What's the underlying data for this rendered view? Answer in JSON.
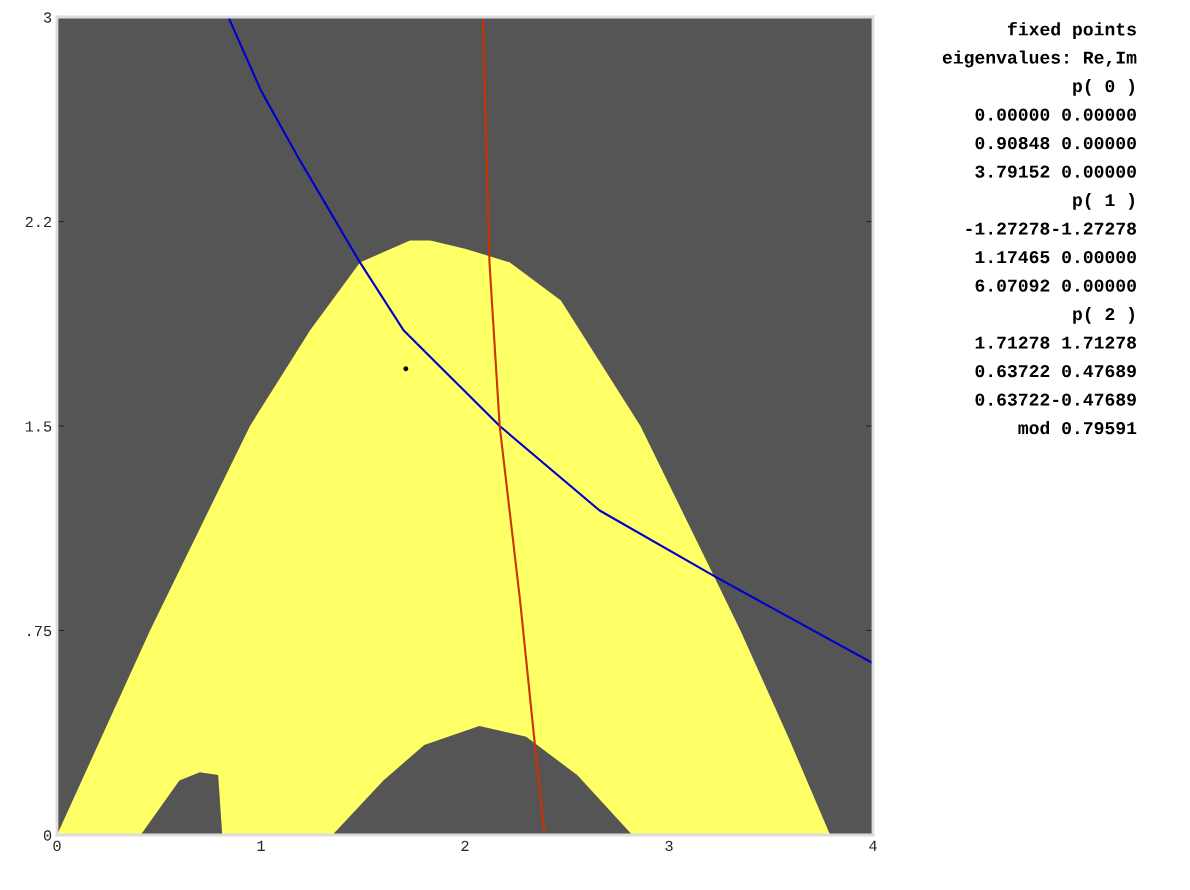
{
  "chart_data": {
    "type": "area",
    "xlim": [
      0,
      4
    ],
    "ylim": [
      0,
      3
    ],
    "xticks": [
      0,
      1,
      2,
      3,
      4
    ],
    "yticks": [
      0,
      {
        "value": 0.75,
        "label": ".75"
      },
      1.5,
      {
        "value": 2.25,
        "label": "2.2"
      },
      3
    ],
    "grid": false,
    "legend": false,
    "series": [
      {
        "color": "#ffff66",
        "x": [
          0,
          0.456,
          0.946,
          1.24,
          1.485,
          1.73,
          1.83,
          2.0,
          2.22,
          2.47,
          2.86,
          3.22,
          3.35,
          3.59,
          3.79
        ],
        "values": [
          0,
          0.75,
          1.5,
          1.85,
          2.1,
          2.18,
          2.18,
          2.15,
          2.1,
          1.96,
          1.5,
          0.95,
          0.75,
          0.35,
          0
        ]
      },
      {
        "color": "#555555",
        "x": [
          1.35,
          1.6,
          1.8,
          2.07,
          2.3,
          2.55,
          2.82
        ],
        "values": [
          0,
          0.2,
          0.33,
          0.4,
          0.36,
          0.22,
          0
        ]
      },
      {
        "color": "#555555",
        "x": [
          0.41,
          0.6,
          0.7,
          0.79,
          0.81
        ],
        "values": [
          0,
          0.2,
          0.23,
          0.22,
          0
        ]
      },
      {
        "type": "line",
        "color": "#0000cc",
        "x": [
          0.84,
          1.0,
          1.19,
          1.485,
          1.7,
          2.17,
          2.66,
          3.22,
          4.0
        ],
        "values": [
          3.0,
          2.73,
          2.475,
          2.1,
          1.85,
          1.5,
          1.19,
          0.95,
          0.63
        ]
      },
      {
        "type": "line",
        "color": "#cc3300",
        "x": [
          2.088,
          2.12,
          2.17,
          2.27,
          2.34,
          2.39
        ],
        "values": [
          3.0,
          2.1,
          1.5,
          0.86,
          0.35,
          0
        ]
      },
      {
        "type": "scatter",
        "color": "#000000",
        "x": [
          1.71
        ],
        "values": [
          1.71
        ]
      }
    ],
    "annotations": [
      "fixed points",
      "eigenvalues: Re,Im",
      "p( 0 )",
      "0.00000 0.00000",
      "0.90848 0.00000",
      "3.79152 0.00000",
      "p( 1 )",
      "-1.27278-1.27278",
      "1.17465 0.00000",
      "6.07092 0.00000",
      "p( 2 )",
      "1.71278 1.71278",
      "0.63722 0.47689",
      "0.63722-0.47689",
      "mod 0.79591"
    ]
  }
}
